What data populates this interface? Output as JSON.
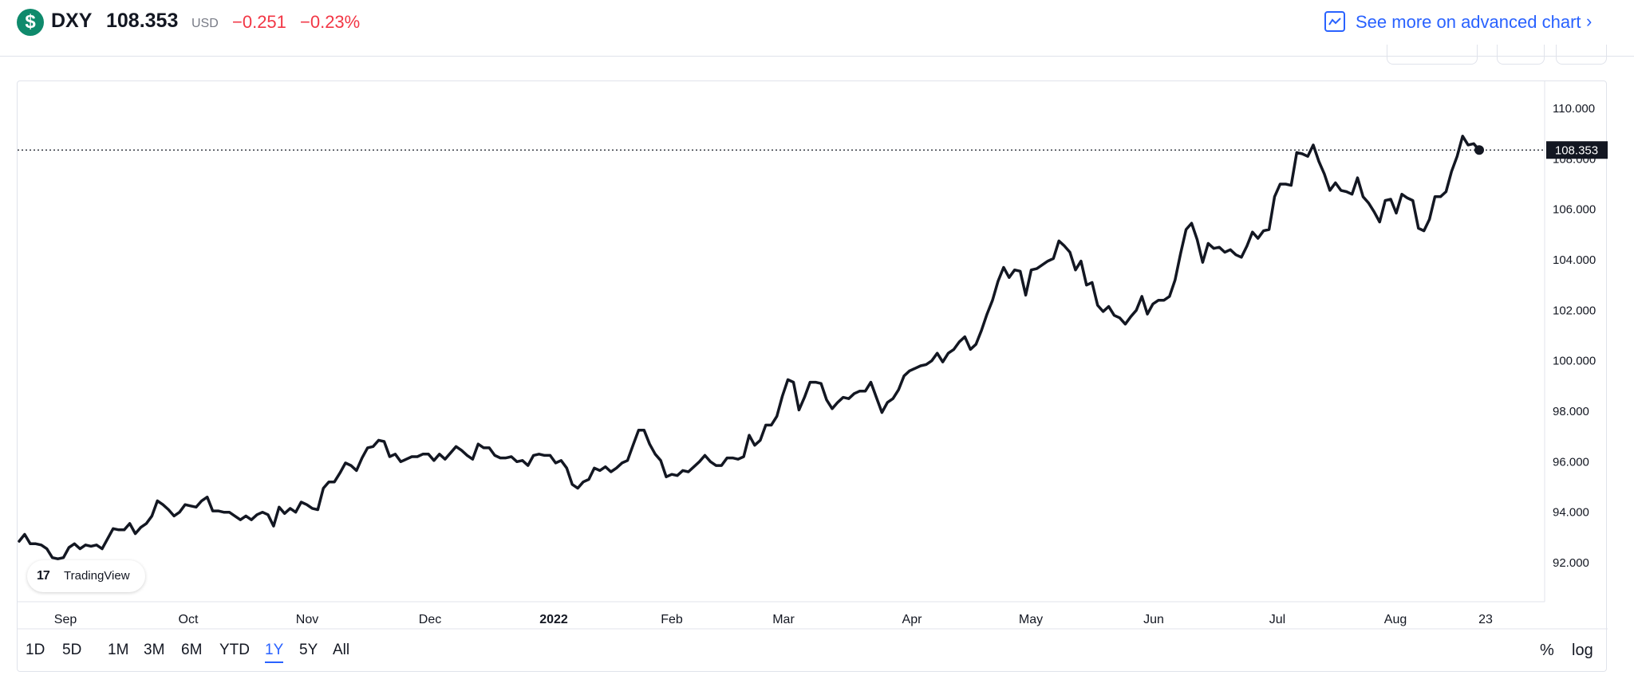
{
  "header": {
    "coin_glyph": "$",
    "symbol": "DXY",
    "price": "108.353",
    "currency": "USD",
    "change": "−0.251",
    "change_percent": "−0.23%",
    "advanced_chart_label": "See more on advanced chart"
  },
  "branding": {
    "logo_mark": "17",
    "logo_text": "TradingView"
  },
  "ranges": {
    "items": [
      "1D",
      "5D",
      "1M",
      "3M",
      "6M",
      "YTD",
      "1Y",
      "5Y",
      "All"
    ],
    "active": "1Y",
    "percent_label": "%",
    "log_label": "log"
  },
  "colors": {
    "line": "#131722",
    "negative": "#f23645",
    "accent": "#2962ff",
    "brand": "#0f8a6c"
  },
  "chart_data": {
    "type": "line",
    "series": [
      {
        "values": [
          92.85,
          93.12,
          92.75,
          92.75,
          92.7,
          92.55,
          92.2,
          92.15,
          92.2,
          92.6,
          92.75,
          92.55,
          92.7,
          92.65,
          92.7,
          92.55,
          92.95,
          93.35,
          93.3,
          93.3,
          93.55,
          93.15,
          93.4,
          93.55,
          93.85,
          94.45,
          94.3,
          94.1,
          93.85,
          94.0,
          94.3,
          94.25,
          94.2,
          94.45,
          94.6,
          94.05,
          94.05,
          94.0,
          94.0,
          93.85,
          93.7,
          93.85,
          93.7,
          93.9,
          94.0,
          93.9,
          93.45,
          94.2,
          93.95,
          94.15,
          94.0,
          94.4,
          94.3,
          94.15,
          94.1,
          94.95,
          95.2,
          95.2,
          95.55,
          95.95,
          95.85,
          95.65,
          96.15,
          96.55,
          96.6,
          96.85,
          96.8,
          96.2,
          96.3,
          96.0,
          96.1,
          96.2,
          96.2,
          96.3,
          96.3,
          96.05,
          96.3,
          96.1,
          96.35,
          96.6,
          96.45,
          96.25,
          96.1,
          96.7,
          96.55,
          96.55,
          96.25,
          96.15,
          96.15,
          96.2,
          96.0,
          96.05,
          95.85,
          96.25,
          96.3,
          96.25,
          96.25,
          95.95,
          96.05,
          95.75,
          95.1,
          94.95,
          95.2,
          95.3,
          95.75,
          95.65,
          95.8,
          95.6,
          95.75,
          95.95,
          96.05,
          96.65,
          97.25,
          97.25,
          96.7,
          96.3,
          96.05,
          95.4,
          95.5,
          95.45,
          95.65,
          95.6,
          95.8,
          96.0,
          96.25,
          96.0,
          95.85,
          95.85,
          96.15,
          96.15,
          96.1,
          96.2,
          97.05,
          96.65,
          96.85,
          97.45,
          97.45,
          97.8,
          98.6,
          99.25,
          99.15,
          98.05,
          98.55,
          99.15,
          99.15,
          99.1,
          98.45,
          98.1,
          98.35,
          98.55,
          98.5,
          98.7,
          98.8,
          98.8,
          99.15,
          98.55,
          97.95,
          98.35,
          98.5,
          98.85,
          99.4,
          99.6,
          99.7,
          99.8,
          99.85,
          100.0,
          100.3,
          99.95,
          100.3,
          100.45,
          100.75,
          100.95,
          100.45,
          100.65,
          101.2,
          101.85,
          102.4,
          103.15,
          103.7,
          103.3,
          103.6,
          103.55,
          102.6,
          103.6,
          103.65,
          103.8,
          103.95,
          104.05,
          104.75,
          104.55,
          104.3,
          103.6,
          103.95,
          103.0,
          103.1,
          102.2,
          101.95,
          102.15,
          101.8,
          101.7,
          101.45,
          101.75,
          102.0,
          102.55,
          101.85,
          102.25,
          102.4,
          102.4,
          102.55,
          103.2,
          104.25,
          105.2,
          105.45,
          104.8,
          103.9,
          104.65,
          104.45,
          104.5,
          104.3,
          104.4,
          104.2,
          104.1,
          104.55,
          105.1,
          104.85,
          105.15,
          105.2,
          106.5,
          107.0,
          107.0,
          106.95,
          108.25,
          108.2,
          108.1,
          108.55,
          107.9,
          107.4,
          106.75,
          107.05,
          106.75,
          106.7,
          106.6,
          107.25,
          106.5,
          106.25,
          105.9,
          105.5,
          106.35,
          106.4,
          105.85,
          106.6,
          106.45,
          106.35,
          105.25,
          105.15,
          105.6,
          106.5,
          106.5,
          106.7,
          107.5,
          108.1,
          108.9,
          108.55,
          108.6,
          108.35
        ]
      }
    ],
    "ylim": [
      90.0,
      111.0
    ],
    "yticks": [
      "110.000",
      "108.000",
      "106.000",
      "104.000",
      "102.000",
      "100.000",
      "98.000",
      "96.000",
      "94.000",
      "92.000"
    ],
    "xticks": [
      "Sep",
      "Oct",
      "Nov",
      "Dec",
      "2022",
      "Feb",
      "Mar",
      "Apr",
      "May",
      "Jun",
      "Jul",
      "Aug",
      "23"
    ],
    "last_value_label": "108.353",
    "grid": false
  }
}
